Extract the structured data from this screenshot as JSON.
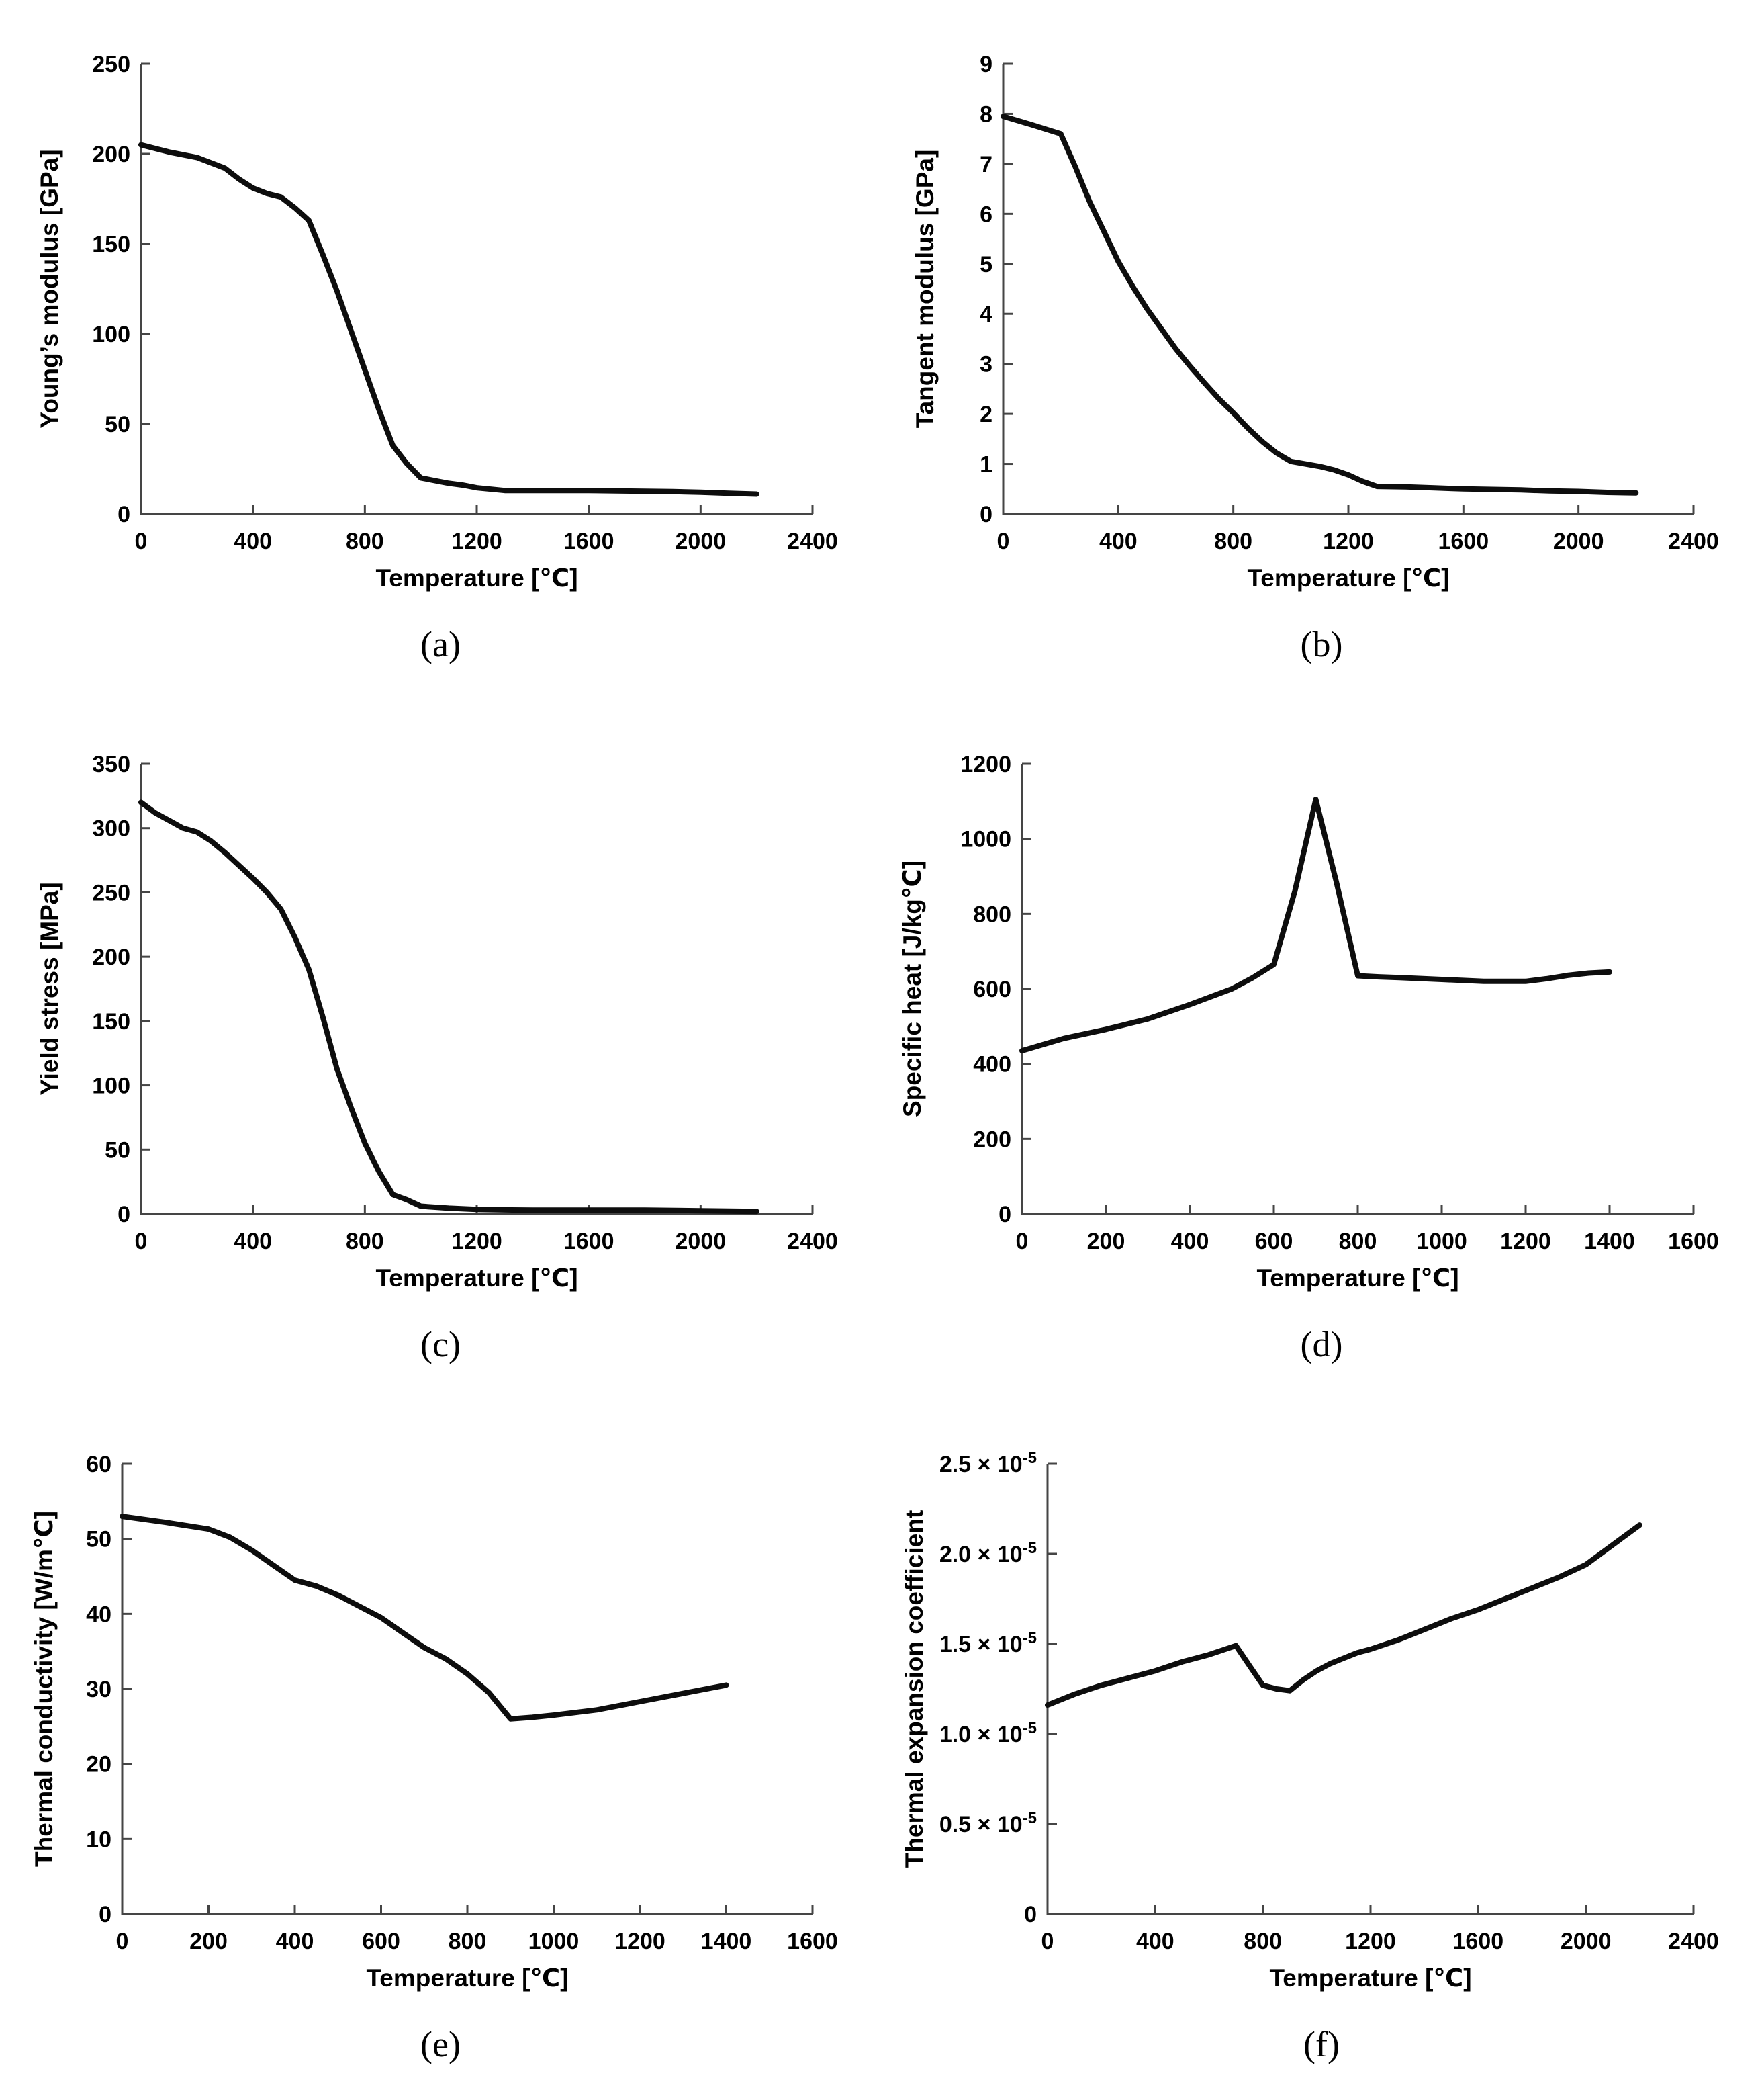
{
  "figure": {
    "background": "#ffffff",
    "curve_color": "#0d0d0d",
    "axis_color": "#454545",
    "text_color": "#000000"
  },
  "chart_data": [
    {
      "id": "a",
      "type": "line",
      "caption": "(a)",
      "xlabel": "Temperature [℃]",
      "ylabel": "Young’s modulus [GPa]",
      "xlim": [
        0,
        2400
      ],
      "ylim": [
        0,
        250
      ],
      "xticks": [
        0,
        400,
        800,
        1200,
        1600,
        2000,
        2400
      ],
      "yticks": [
        0,
        50,
        100,
        150,
        200,
        250
      ],
      "grid": false,
      "legend": "none",
      "x": [
        0,
        100,
        200,
        250,
        300,
        350,
        400,
        450,
        500,
        550,
        600,
        650,
        700,
        750,
        800,
        850,
        900,
        950,
        1000,
        1050,
        1100,
        1150,
        1200,
        1300,
        1400,
        1500,
        1600,
        1700,
        1800,
        1900,
        2000,
        2100,
        2200
      ],
      "y": [
        205,
        201,
        198,
        195,
        192,
        186,
        181,
        178,
        176,
        170,
        163,
        144,
        124,
        102,
        80,
        58,
        38,
        28,
        20,
        18.5,
        17,
        16,
        14.5,
        13,
        13,
        13,
        13,
        12.8,
        12.6,
        12.4,
        12,
        11.5,
        11
      ]
    },
    {
      "id": "b",
      "type": "line",
      "caption": "(b)",
      "xlabel": "Temperature [℃]",
      "ylabel": "Tangent modulus [GPa]",
      "xlim": [
        0,
        2400
      ],
      "ylim": [
        0,
        9
      ],
      "xticks": [
        0,
        400,
        800,
        1200,
        1600,
        2000,
        2400
      ],
      "yticks": [
        0,
        1,
        2,
        3,
        4,
        5,
        6,
        7,
        8,
        9
      ],
      "grid": false,
      "legend": "none",
      "x": [
        0,
        100,
        200,
        250,
        300,
        350,
        400,
        450,
        500,
        550,
        600,
        650,
        700,
        750,
        800,
        850,
        900,
        950,
        1000,
        1050,
        1100,
        1150,
        1200,
        1250,
        1300,
        1400,
        1500,
        1600,
        1700,
        1800,
        1900,
        2000,
        2100,
        2200
      ],
      "y": [
        7.95,
        7.78,
        7.6,
        6.95,
        6.25,
        5.65,
        5.05,
        4.55,
        4.1,
        3.7,
        3.3,
        2.95,
        2.62,
        2.3,
        2.02,
        1.72,
        1.45,
        1.22,
        1.05,
        1.0,
        0.95,
        0.88,
        0.78,
        0.65,
        0.55,
        0.54,
        0.52,
        0.5,
        0.49,
        0.48,
        0.46,
        0.45,
        0.43,
        0.42
      ]
    },
    {
      "id": "c",
      "type": "line",
      "caption": "(c)",
      "xlabel": "Temperature [℃]",
      "ylabel": "Yield stress [MPa]",
      "xlim": [
        0,
        2400
      ],
      "ylim": [
        0,
        350
      ],
      "xticks": [
        0,
        400,
        800,
        1200,
        1600,
        2000,
        2400
      ],
      "yticks": [
        0,
        50,
        100,
        150,
        200,
        250,
        300,
        350
      ],
      "grid": false,
      "legend": "none",
      "x": [
        0,
        50,
        100,
        150,
        200,
        250,
        300,
        350,
        400,
        450,
        500,
        550,
        600,
        650,
        700,
        750,
        800,
        850,
        900,
        950,
        1000,
        1100,
        1200,
        1300,
        1400,
        1600,
        1800,
        2000,
        2200
      ],
      "y": [
        320,
        312,
        306,
        300,
        297,
        290,
        281,
        271,
        261,
        250,
        237,
        215,
        190,
        153,
        113,
        83,
        55,
        33,
        15,
        11,
        6,
        4.5,
        3.5,
        3.2,
        3,
        3,
        3,
        2.5,
        2
      ]
    },
    {
      "id": "d",
      "type": "line",
      "caption": "(d)",
      "xlabel": "Temperature [℃]",
      "ylabel": "Specific heat [J/kg℃]",
      "xlim": [
        0,
        1600
      ],
      "ylim": [
        0,
        1200
      ],
      "xticks": [
        0,
        200,
        400,
        600,
        800,
        1000,
        1200,
        1400,
        1600
      ],
      "yticks": [
        0,
        200,
        400,
        600,
        800,
        1000,
        1200
      ],
      "grid": false,
      "legend": "none",
      "x": [
        0,
        100,
        200,
        300,
        400,
        500,
        550,
        600,
        650,
        700,
        750,
        800,
        850,
        900,
        1000,
        1100,
        1200,
        1250,
        1300,
        1350,
        1400
      ],
      "y": [
        435,
        468,
        492,
        520,
        558,
        600,
        630,
        665,
        860,
        1105,
        880,
        635,
        632,
        630,
        625,
        620,
        620,
        627,
        636,
        642,
        645
      ]
    },
    {
      "id": "e",
      "type": "line",
      "caption": "(e)",
      "xlabel": "Temperature [℃]",
      "ylabel": "Thermal conductivity [W/m℃]",
      "xlim": [
        0,
        1600
      ],
      "ylim": [
        0,
        60
      ],
      "xticks": [
        0,
        200,
        400,
        600,
        800,
        1000,
        1200,
        1400,
        1600
      ],
      "yticks": [
        0,
        10,
        20,
        30,
        40,
        50,
        60
      ],
      "grid": false,
      "legend": "none",
      "x": [
        0,
        100,
        200,
        250,
        300,
        350,
        400,
        450,
        500,
        550,
        600,
        650,
        700,
        750,
        800,
        850,
        900,
        950,
        1000,
        1100,
        1200,
        1300,
        1400
      ],
      "y": [
        53,
        52.2,
        51.3,
        50.2,
        48.5,
        46.5,
        44.5,
        43.7,
        42.5,
        41,
        39.5,
        37.5,
        35.5,
        34,
        32,
        29.5,
        26,
        26.2,
        26.5,
        27.2,
        28.3,
        29.4,
        30.5
      ]
    },
    {
      "id": "f",
      "type": "line",
      "caption": "(f)",
      "xlabel": "Temperature [℃]",
      "ylabel": "Thermal expansion coefficient",
      "xlim": [
        0,
        2400
      ],
      "ylim": [
        0,
        2.5
      ],
      "y_unit": "1e-5",
      "xticks": [
        0,
        400,
        800,
        1200,
        1600,
        2000,
        2400
      ],
      "yticks": [
        0,
        0.5,
        1.0,
        1.5,
        2.0,
        2.5
      ],
      "ytick_labels": [
        "0",
        "0.5 × 10^-5",
        "1.0 × 10^-5",
        "1.5 × 10^-5",
        "2.0 × 10^-5",
        "2.5 × 10^-5"
      ],
      "grid": false,
      "legend": "none",
      "x": [
        0,
        100,
        200,
        300,
        400,
        500,
        600,
        700,
        750,
        800,
        850,
        900,
        950,
        1000,
        1050,
        1100,
        1150,
        1200,
        1300,
        1400,
        1500,
        1600,
        1700,
        1800,
        1900,
        2000,
        2100,
        2200
      ],
      "y": [
        1.16,
        1.22,
        1.27,
        1.31,
        1.35,
        1.4,
        1.44,
        1.49,
        1.38,
        1.27,
        1.25,
        1.24,
        1.3,
        1.35,
        1.39,
        1.42,
        1.45,
        1.47,
        1.52,
        1.58,
        1.64,
        1.69,
        1.75,
        1.81,
        1.87,
        1.94,
        2.05,
        2.16
      ]
    }
  ]
}
